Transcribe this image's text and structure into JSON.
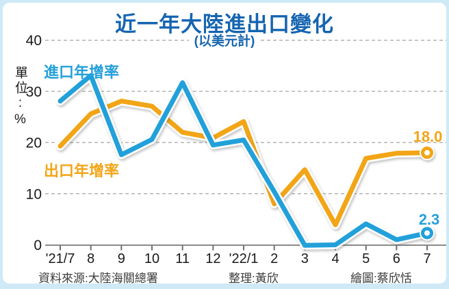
{
  "title": "近一年大陸進出口變化",
  "subtitle": "(以美元計)",
  "unit_label": "單位:%",
  "legend": {
    "import_label": "進口年增率",
    "export_label": "出口年增率"
  },
  "end_labels": {
    "export_value": "18.0",
    "import_value": "2.3"
  },
  "footer": {
    "source": "資料來源:大陸海關總署",
    "editor": "整理:黃欣",
    "illustrator": "繪圖:蔡欣恬"
  },
  "colors": {
    "title": "#1464b0",
    "import_line": "#24a0da",
    "export_line": "#f2a517",
    "grid": "#b2b2b2",
    "axis": "#8a8a8a",
    "tick_text": "#1a1a1a",
    "page_border": "#cfe9f7",
    "card_background": "#ffffff"
  },
  "chart_data": {
    "type": "line",
    "categories": [
      "'21/7",
      "8",
      "9",
      "10",
      "11",
      "12",
      "'22/1",
      "2",
      "3",
      "4",
      "5",
      "6",
      "7"
    ],
    "series": [
      {
        "name": "出口年增率",
        "color_key": "export_line",
        "values": [
          19.3,
          25.6,
          28.1,
          27.1,
          22.0,
          20.9,
          24.1,
          8.0,
          14.7,
          3.9,
          16.9,
          17.9,
          18.0
        ]
      },
      {
        "name": "進口年增率",
        "color_key": "import_line",
        "values": [
          28.1,
          33.1,
          17.6,
          20.6,
          31.7,
          19.5,
          20.5,
          10.4,
          -0.1,
          0.0,
          4.1,
          1.0,
          2.3
        ]
      }
    ],
    "yticks": [
      0,
      10,
      20,
      30,
      40
    ],
    "ylim": [
      0,
      40
    ],
    "grid": "dashed-horizontal",
    "legend_position": "inline-left",
    "last_point_markers": true
  }
}
